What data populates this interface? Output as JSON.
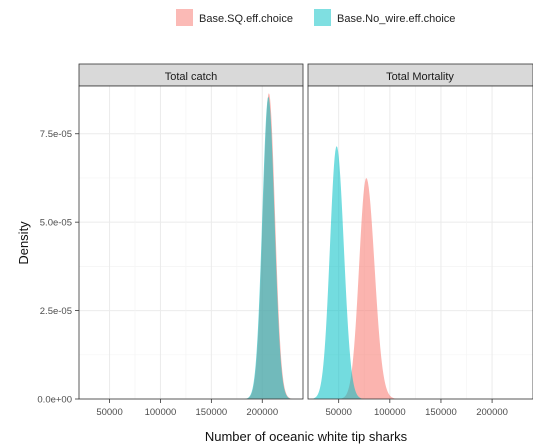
{
  "chart_data": {
    "type": "area",
    "chart_kind": "faceted density plot",
    "xlabel": "Number of oceanic white tip sharks",
    "ylabel": "Density",
    "ylim": [
      0,
      8.85e-05
    ],
    "y_ticks": [
      0,
      2.5e-05,
      5e-05,
      7.5e-05
    ],
    "y_tick_labels": [
      "0.0e+00",
      "2.5e-05",
      "5.0e-05",
      "7.5e-05"
    ],
    "x_ticks": [
      50000,
      100000,
      150000,
      200000
    ],
    "x_tick_labels": [
      "50000",
      "100000",
      "150000",
      "200000"
    ],
    "xlim": [
      20000,
      240000
    ],
    "grid": true,
    "legend_position": "top",
    "legend": [
      {
        "key": "sq",
        "label": "Base.SQ.eff.choice",
        "color": "#F8766D"
      },
      {
        "key": "nowire",
        "label": "Base.No_wire.eff.choice",
        "color": "#00BFC4"
      }
    ],
    "facets": [
      {
        "label": "Total catch",
        "series": [
          {
            "key": "sq",
            "peak_x": 206500,
            "peak_y": 8.65e-05,
            "spread_left": 6000,
            "spread_right": 6000
          },
          {
            "key": "nowire",
            "peak_x": 206000,
            "peak_y": 8.55e-05,
            "spread_left": 6000,
            "spread_right": 6000
          }
        ]
      },
      {
        "label": "Total Mortality",
        "series": [
          {
            "key": "sq",
            "peak_x": 77000,
            "peak_y": 6.25e-05,
            "spread_left": 7000,
            "spread_right": 8000
          },
          {
            "key": "nowire",
            "peak_x": 48000,
            "peak_y": 7.15e-05,
            "spread_left": 6500,
            "spread_right": 7000
          }
        ]
      }
    ]
  }
}
